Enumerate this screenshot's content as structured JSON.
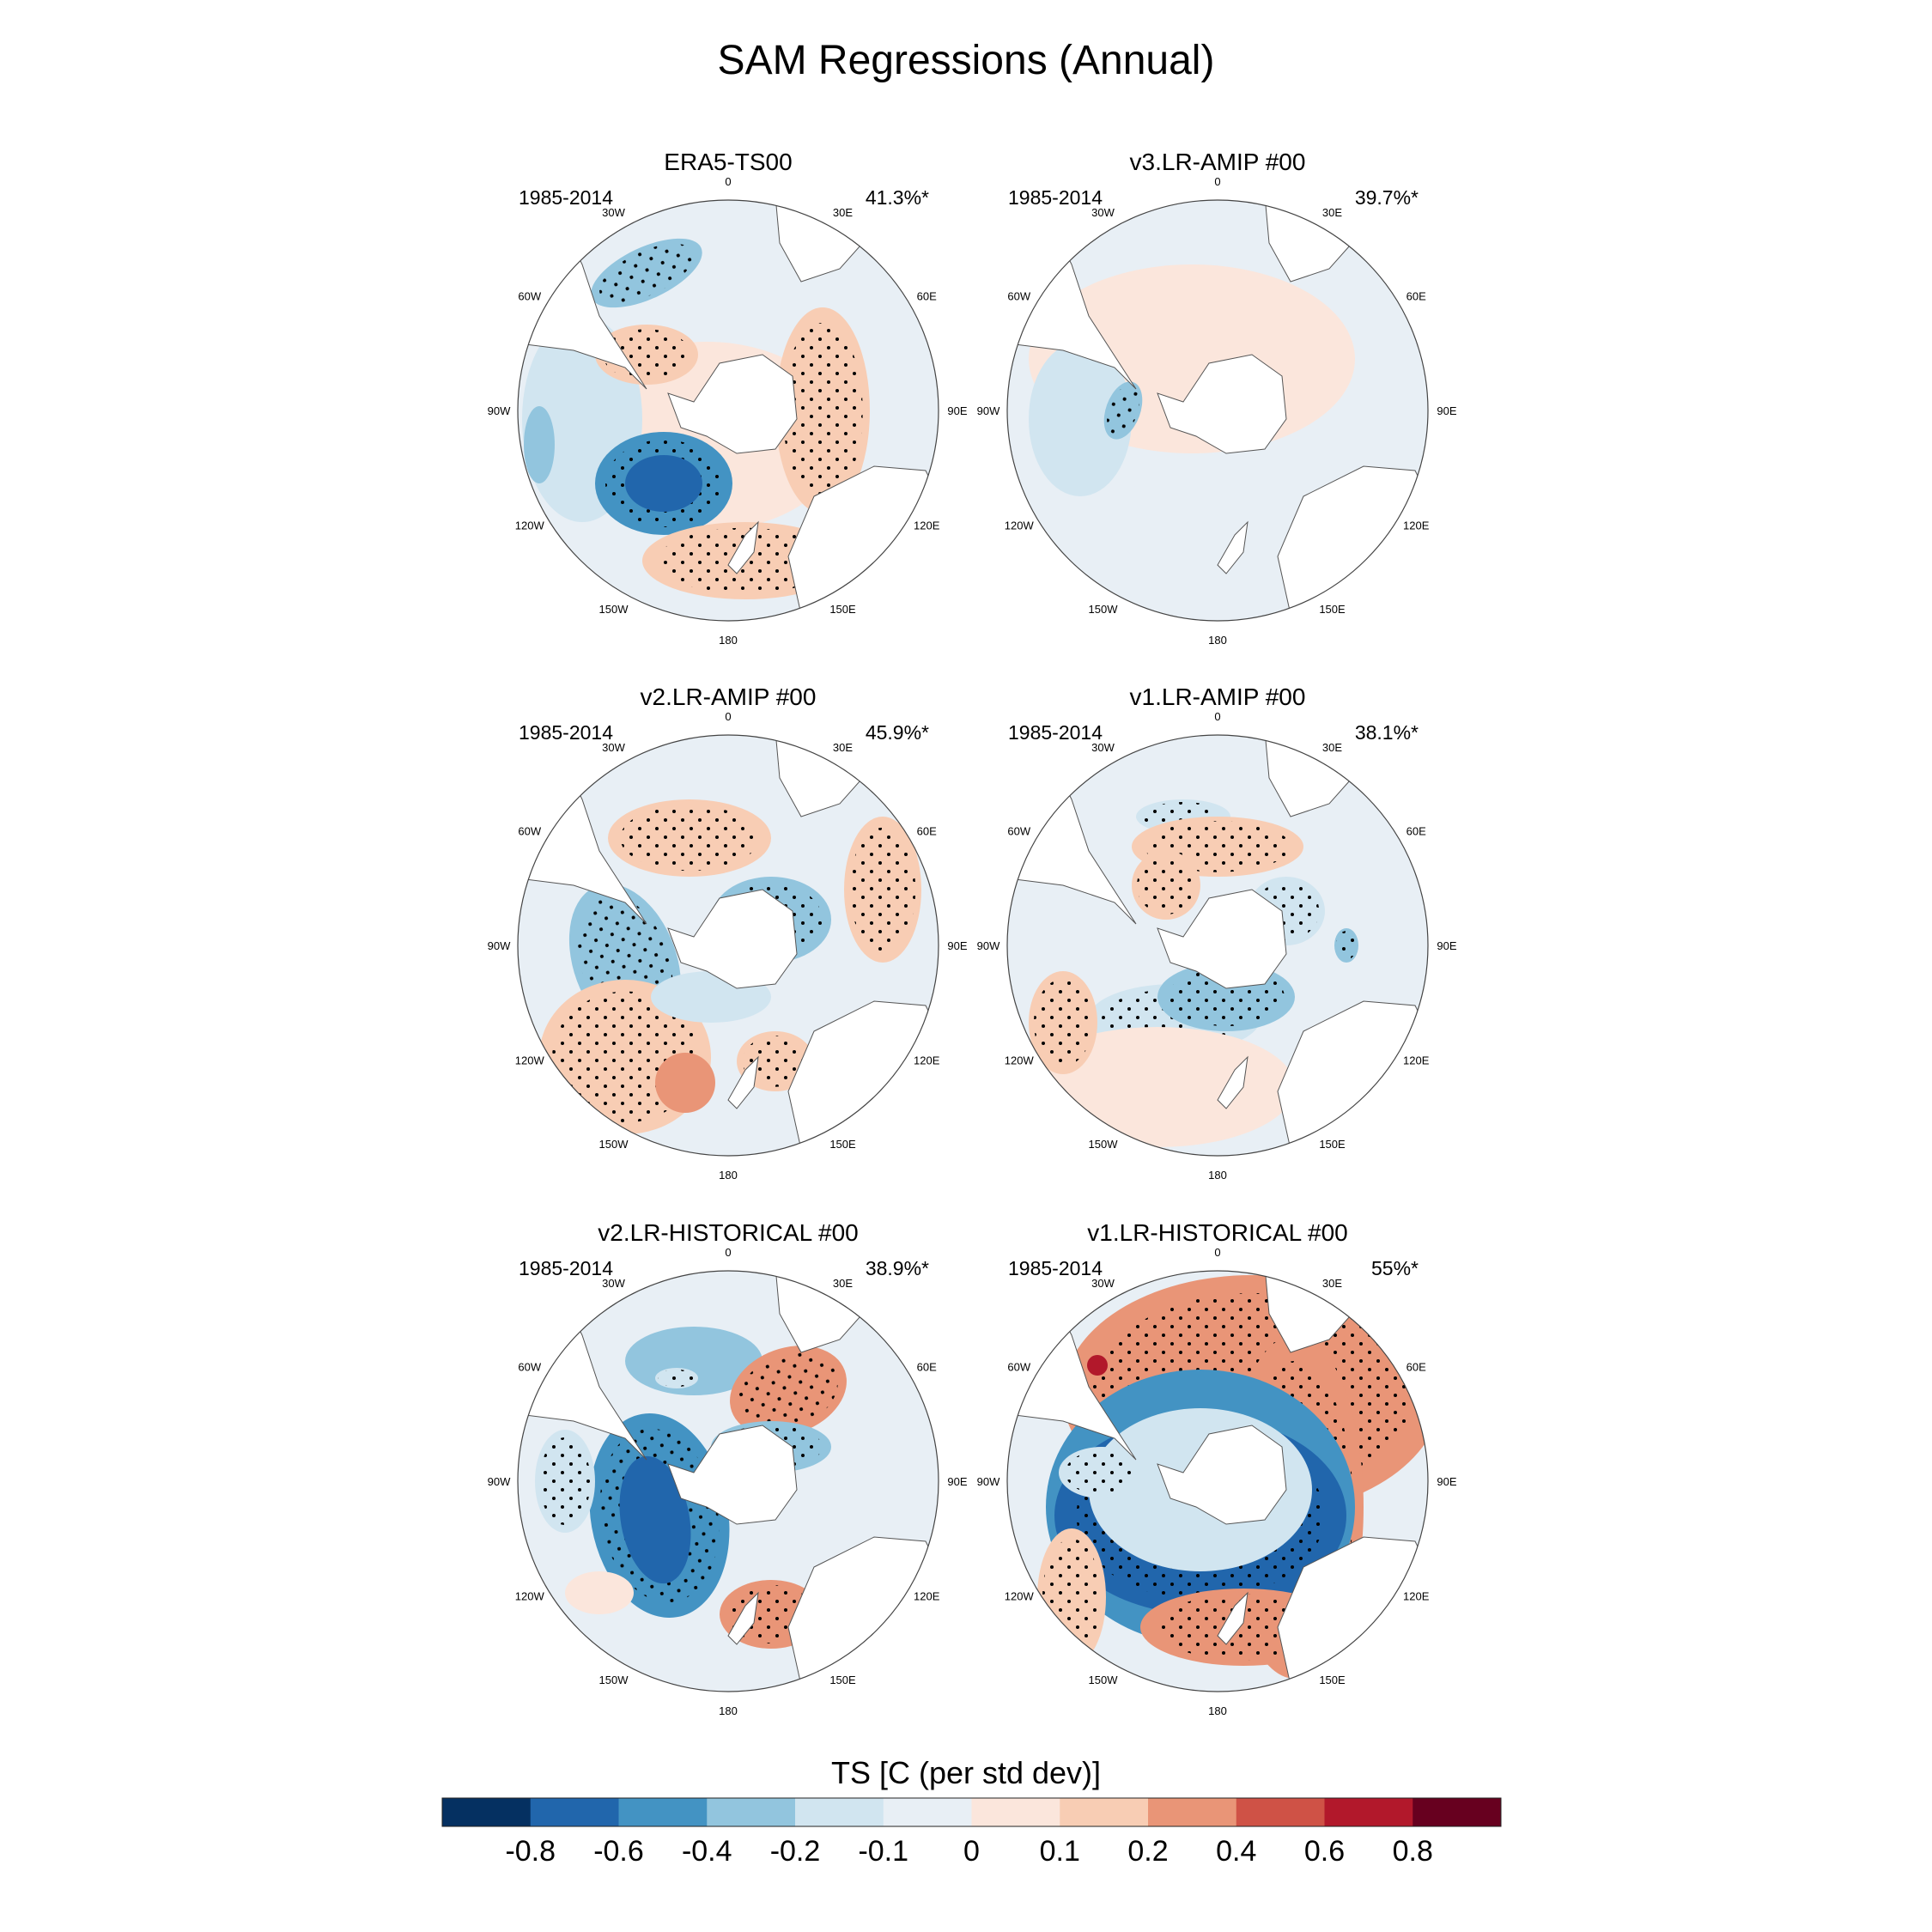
{
  "figure": {
    "title": "SAM Regressions (Annual)"
  },
  "panels": [
    {
      "title": "ERA5-TS00",
      "period": "1985-2014",
      "variance": "41.3%*",
      "pattern": "era5"
    },
    {
      "title": "v3.LR-AMIP  #00",
      "period": "1985-2014",
      "variance": "39.7%*",
      "pattern": "v3amip"
    },
    {
      "title": "v2.LR-AMIP  #00",
      "period": "1985-2014",
      "variance": "45.9%*",
      "pattern": "v2amip"
    },
    {
      "title": "v1.LR-AMIP  #00",
      "period": "1985-2014",
      "variance": "38.1%*",
      "pattern": "v1amip"
    },
    {
      "title": "v2.LR-HISTORICAL  #00",
      "period": "1985-2014",
      "variance": "38.9%*",
      "pattern": "v2hist"
    },
    {
      "title": "v1.LR-HISTORICAL  #00",
      "period": "1985-2014",
      "variance": "55%*",
      "pattern": "v1hist"
    }
  ],
  "map": {
    "projection": "south polar stereographic",
    "longitude_labels": [
      "0",
      "30E",
      "60E",
      "90E",
      "120E",
      "150E",
      "180",
      "150W",
      "120W",
      "90W",
      "60W",
      "30W"
    ]
  },
  "colorbar": {
    "title": "TS [C (per std dev)]",
    "tick_labels": [
      "-0.8",
      "-0.6",
      "-0.4",
      "-0.2",
      "-0.1",
      "0",
      "0.1",
      "0.2",
      "0.4",
      "0.6",
      "0.8"
    ],
    "colors": [
      "#053061",
      "#2166ac",
      "#4393c3",
      "#92c5de",
      "#d1e5f0",
      "#e8eff5",
      "#fbe6dc",
      "#f8cdb4",
      "#e99577",
      "#cf5246",
      "#b2182b",
      "#67001f"
    ]
  }
}
